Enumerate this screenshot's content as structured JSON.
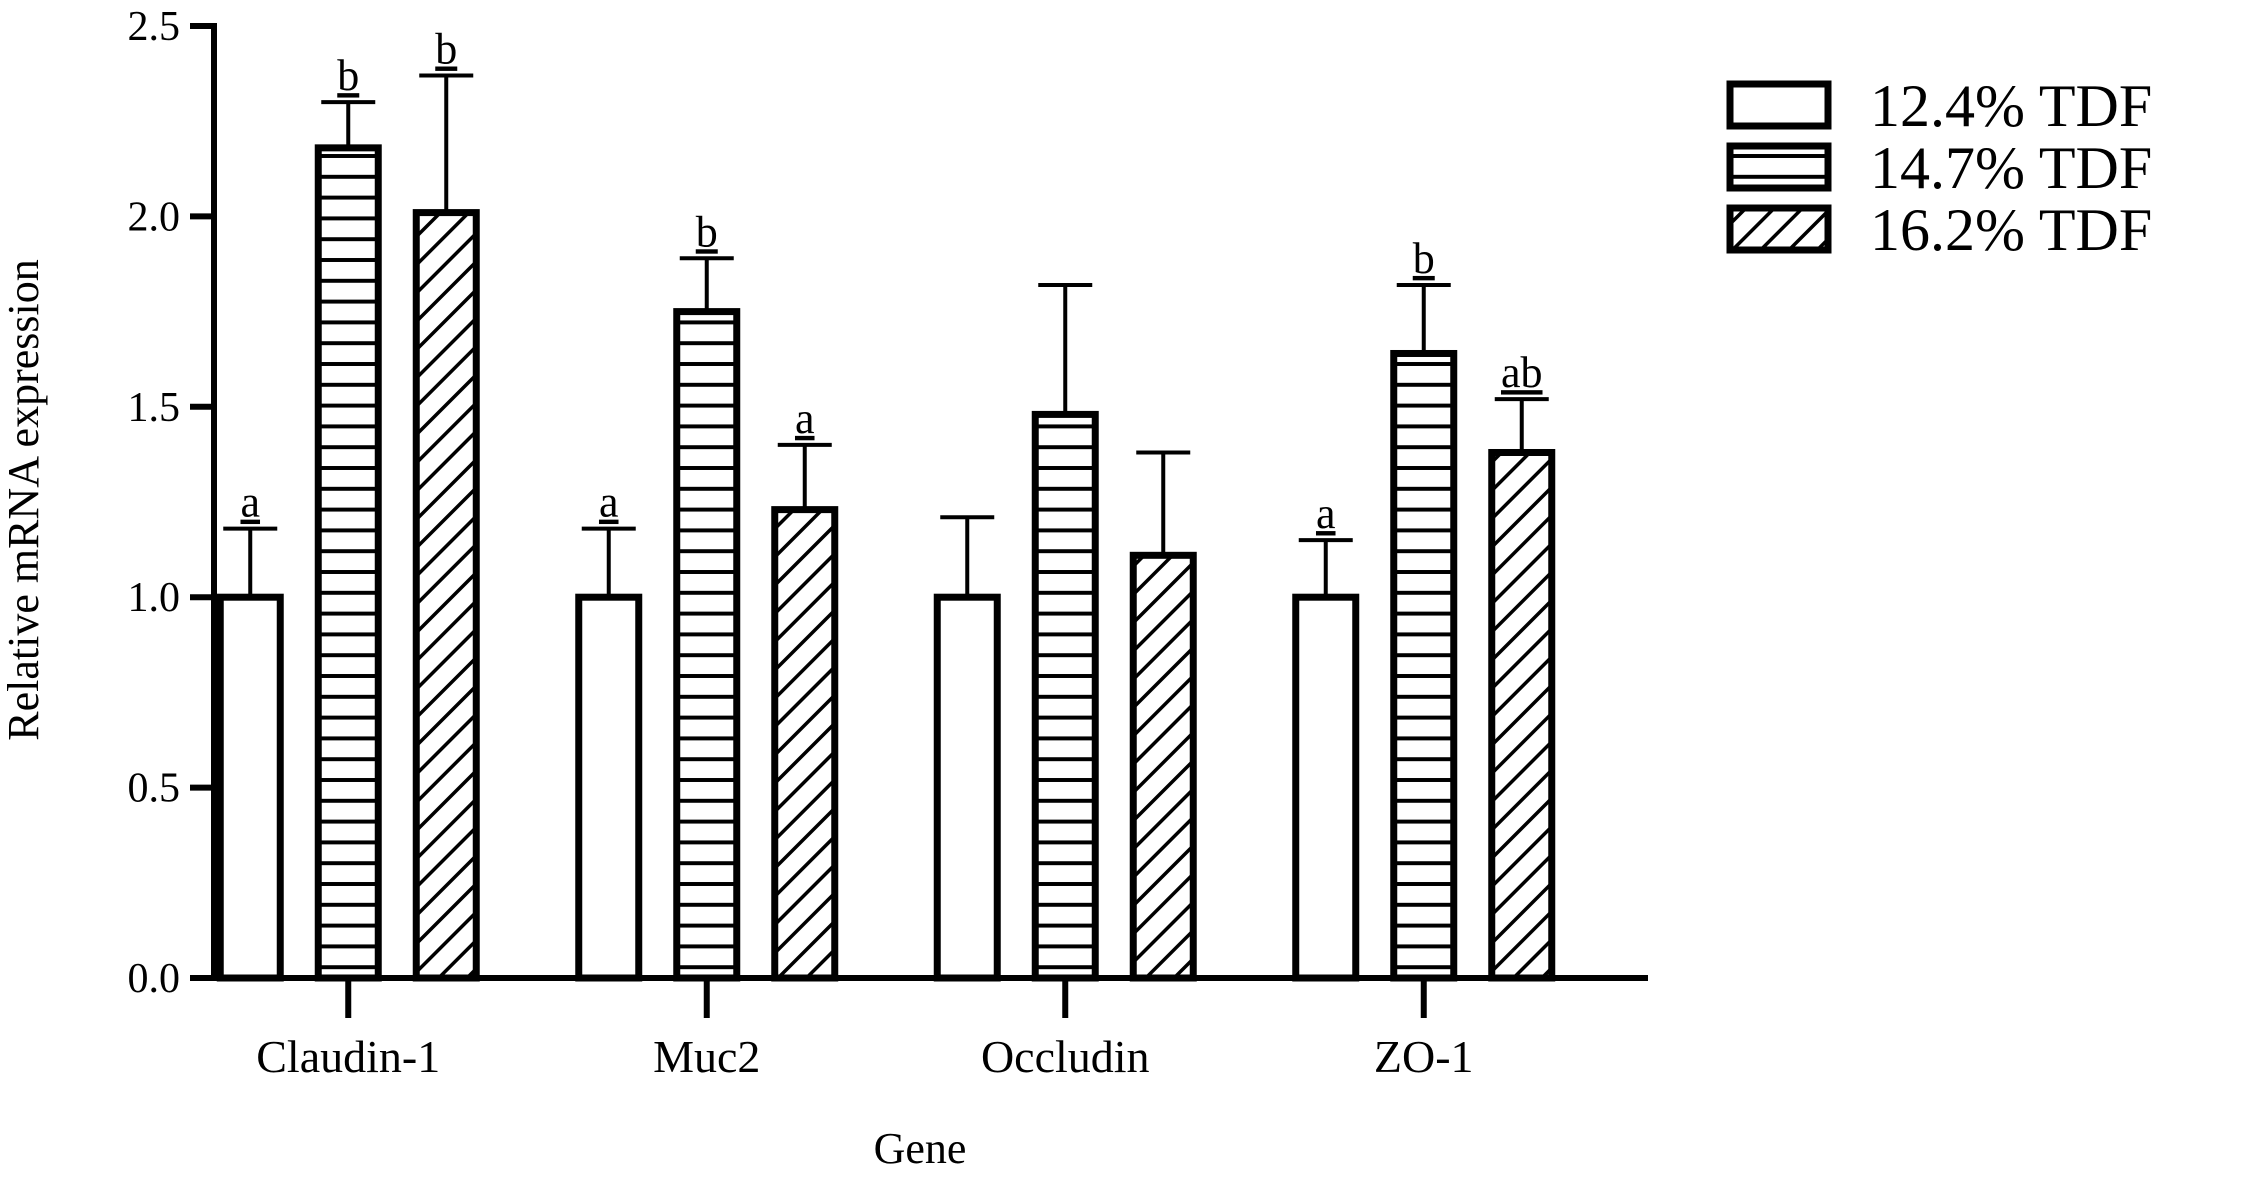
{
  "chart_data": {
    "type": "bar",
    "xlabel": "Gene",
    "ylabel": "Relative mRNA expression",
    "ylim": [
      0,
      2.5
    ],
    "yticks": [
      "0.0",
      "0.5",
      "1.0",
      "1.5",
      "2.0",
      "2.5"
    ],
    "grid": false,
    "legend_position": "top-right",
    "categories": [
      "Claudin-1",
      "Muc2",
      "Occludin",
      "ZO-1"
    ],
    "series": [
      {
        "name": "12.4% TDF",
        "pattern": "none",
        "values": [
          1.0,
          1.0,
          1.0,
          1.0
        ],
        "errors": [
          0.18,
          0.18,
          0.21,
          0.15
        ],
        "labels": [
          "a",
          "a",
          "",
          "a"
        ]
      },
      {
        "name": "14.7% TDF",
        "pattern": "horizontal-lines",
        "values": [
          2.18,
          1.75,
          1.48,
          1.64
        ],
        "errors": [
          0.12,
          0.14,
          0.34,
          0.18
        ],
        "labels": [
          "b",
          "b",
          "",
          "b"
        ]
      },
      {
        "name": "16.2% TDF",
        "pattern": "diagonal-hatch",
        "values": [
          2.01,
          1.23,
          1.11,
          1.38
        ],
        "errors": [
          0.36,
          0.17,
          0.27,
          0.14
        ],
        "labels": [
          "b",
          "a",
          "",
          "ab"
        ]
      }
    ],
    "colors": {
      "stroke": "#000000",
      "fill": "#ffffff"
    }
  }
}
